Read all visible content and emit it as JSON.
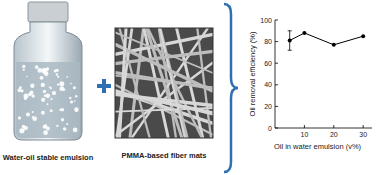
{
  "chart_data": {
    "type": "line",
    "annotations": [
      "Water-oil stable emulsion",
      "PMMA-based fiber mats"
    ],
    "x_label": "Oil in water emulsion (v%)",
    "y_label": "Oil removal efficiency (%)",
    "x": [
      5,
      10,
      20,
      30
    ],
    "values": [
      81,
      88,
      77,
      85
    ],
    "errors": [
      9,
      null,
      null,
      null
    ],
    "color": "#000000",
    "marker": "circle",
    "xlim": [
      0,
      33
    ],
    "xticks": [
      10,
      20,
      30
    ],
    "ylim": [
      0,
      100
    ],
    "yticks": [
      0,
      20,
      40,
      60,
      80,
      100
    ],
    "grid": false
  }
}
